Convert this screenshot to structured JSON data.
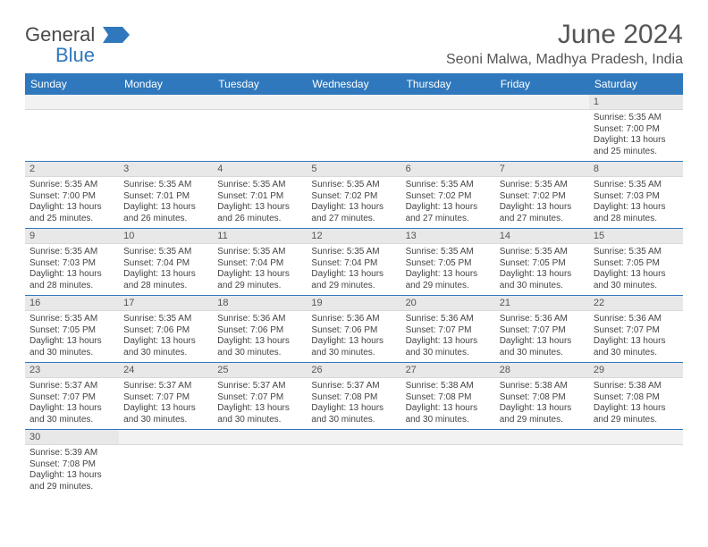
{
  "logo": {
    "text1": "General",
    "text2": "Blue",
    "flag_color": "#2f78bd"
  },
  "header": {
    "title": "June 2024",
    "location": "Seoni Malwa, Madhya Pradesh, India"
  },
  "style": {
    "header_bg": "#2f78bd",
    "header_fg": "#ffffff",
    "daynum_bg": "#e8e8e8",
    "border_color": "#2f78bd",
    "title_fontsize": 30,
    "location_fontsize": 16,
    "th_fontsize": 12,
    "daynum_fontsize": 11,
    "body_fontsize": 10
  },
  "weekdays": [
    "Sunday",
    "Monday",
    "Tuesday",
    "Wednesday",
    "Thursday",
    "Friday",
    "Saturday"
  ],
  "weeks": [
    [
      {
        "empty": true
      },
      {
        "empty": true
      },
      {
        "empty": true
      },
      {
        "empty": true
      },
      {
        "empty": true
      },
      {
        "empty": true
      },
      {
        "n": "1",
        "sr": "5:35 AM",
        "ss": "7:00 PM",
        "dl": "13 hours and 25 minutes."
      }
    ],
    [
      {
        "n": "2",
        "sr": "5:35 AM",
        "ss": "7:00 PM",
        "dl": "13 hours and 25 minutes."
      },
      {
        "n": "3",
        "sr": "5:35 AM",
        "ss": "7:01 PM",
        "dl": "13 hours and 26 minutes."
      },
      {
        "n": "4",
        "sr": "5:35 AM",
        "ss": "7:01 PM",
        "dl": "13 hours and 26 minutes."
      },
      {
        "n": "5",
        "sr": "5:35 AM",
        "ss": "7:02 PM",
        "dl": "13 hours and 27 minutes."
      },
      {
        "n": "6",
        "sr": "5:35 AM",
        "ss": "7:02 PM",
        "dl": "13 hours and 27 minutes."
      },
      {
        "n": "7",
        "sr": "5:35 AM",
        "ss": "7:02 PM",
        "dl": "13 hours and 27 minutes."
      },
      {
        "n": "8",
        "sr": "5:35 AM",
        "ss": "7:03 PM",
        "dl": "13 hours and 28 minutes."
      }
    ],
    [
      {
        "n": "9",
        "sr": "5:35 AM",
        "ss": "7:03 PM",
        "dl": "13 hours and 28 minutes."
      },
      {
        "n": "10",
        "sr": "5:35 AM",
        "ss": "7:04 PM",
        "dl": "13 hours and 28 minutes."
      },
      {
        "n": "11",
        "sr": "5:35 AM",
        "ss": "7:04 PM",
        "dl": "13 hours and 29 minutes."
      },
      {
        "n": "12",
        "sr": "5:35 AM",
        "ss": "7:04 PM",
        "dl": "13 hours and 29 minutes."
      },
      {
        "n": "13",
        "sr": "5:35 AM",
        "ss": "7:05 PM",
        "dl": "13 hours and 29 minutes."
      },
      {
        "n": "14",
        "sr": "5:35 AM",
        "ss": "7:05 PM",
        "dl": "13 hours and 30 minutes."
      },
      {
        "n": "15",
        "sr": "5:35 AM",
        "ss": "7:05 PM",
        "dl": "13 hours and 30 minutes."
      }
    ],
    [
      {
        "n": "16",
        "sr": "5:35 AM",
        "ss": "7:05 PM",
        "dl": "13 hours and 30 minutes."
      },
      {
        "n": "17",
        "sr": "5:35 AM",
        "ss": "7:06 PM",
        "dl": "13 hours and 30 minutes."
      },
      {
        "n": "18",
        "sr": "5:36 AM",
        "ss": "7:06 PM",
        "dl": "13 hours and 30 minutes."
      },
      {
        "n": "19",
        "sr": "5:36 AM",
        "ss": "7:06 PM",
        "dl": "13 hours and 30 minutes."
      },
      {
        "n": "20",
        "sr": "5:36 AM",
        "ss": "7:07 PM",
        "dl": "13 hours and 30 minutes."
      },
      {
        "n": "21",
        "sr": "5:36 AM",
        "ss": "7:07 PM",
        "dl": "13 hours and 30 minutes."
      },
      {
        "n": "22",
        "sr": "5:36 AM",
        "ss": "7:07 PM",
        "dl": "13 hours and 30 minutes."
      }
    ],
    [
      {
        "n": "23",
        "sr": "5:37 AM",
        "ss": "7:07 PM",
        "dl": "13 hours and 30 minutes."
      },
      {
        "n": "24",
        "sr": "5:37 AM",
        "ss": "7:07 PM",
        "dl": "13 hours and 30 minutes."
      },
      {
        "n": "25",
        "sr": "5:37 AM",
        "ss": "7:07 PM",
        "dl": "13 hours and 30 minutes."
      },
      {
        "n": "26",
        "sr": "5:37 AM",
        "ss": "7:08 PM",
        "dl": "13 hours and 30 minutes."
      },
      {
        "n": "27",
        "sr": "5:38 AM",
        "ss": "7:08 PM",
        "dl": "13 hours and 30 minutes."
      },
      {
        "n": "28",
        "sr": "5:38 AM",
        "ss": "7:08 PM",
        "dl": "13 hours and 29 minutes."
      },
      {
        "n": "29",
        "sr": "5:38 AM",
        "ss": "7:08 PM",
        "dl": "13 hours and 29 minutes."
      }
    ],
    [
      {
        "n": "30",
        "sr": "5:39 AM",
        "ss": "7:08 PM",
        "dl": "13 hours and 29 minutes."
      },
      {
        "empty": true
      },
      {
        "empty": true
      },
      {
        "empty": true
      },
      {
        "empty": true
      },
      {
        "empty": true
      },
      {
        "empty": true
      }
    ]
  ],
  "labels": {
    "sunrise": "Sunrise:",
    "sunset": "Sunset:",
    "daylight": "Daylight:"
  }
}
